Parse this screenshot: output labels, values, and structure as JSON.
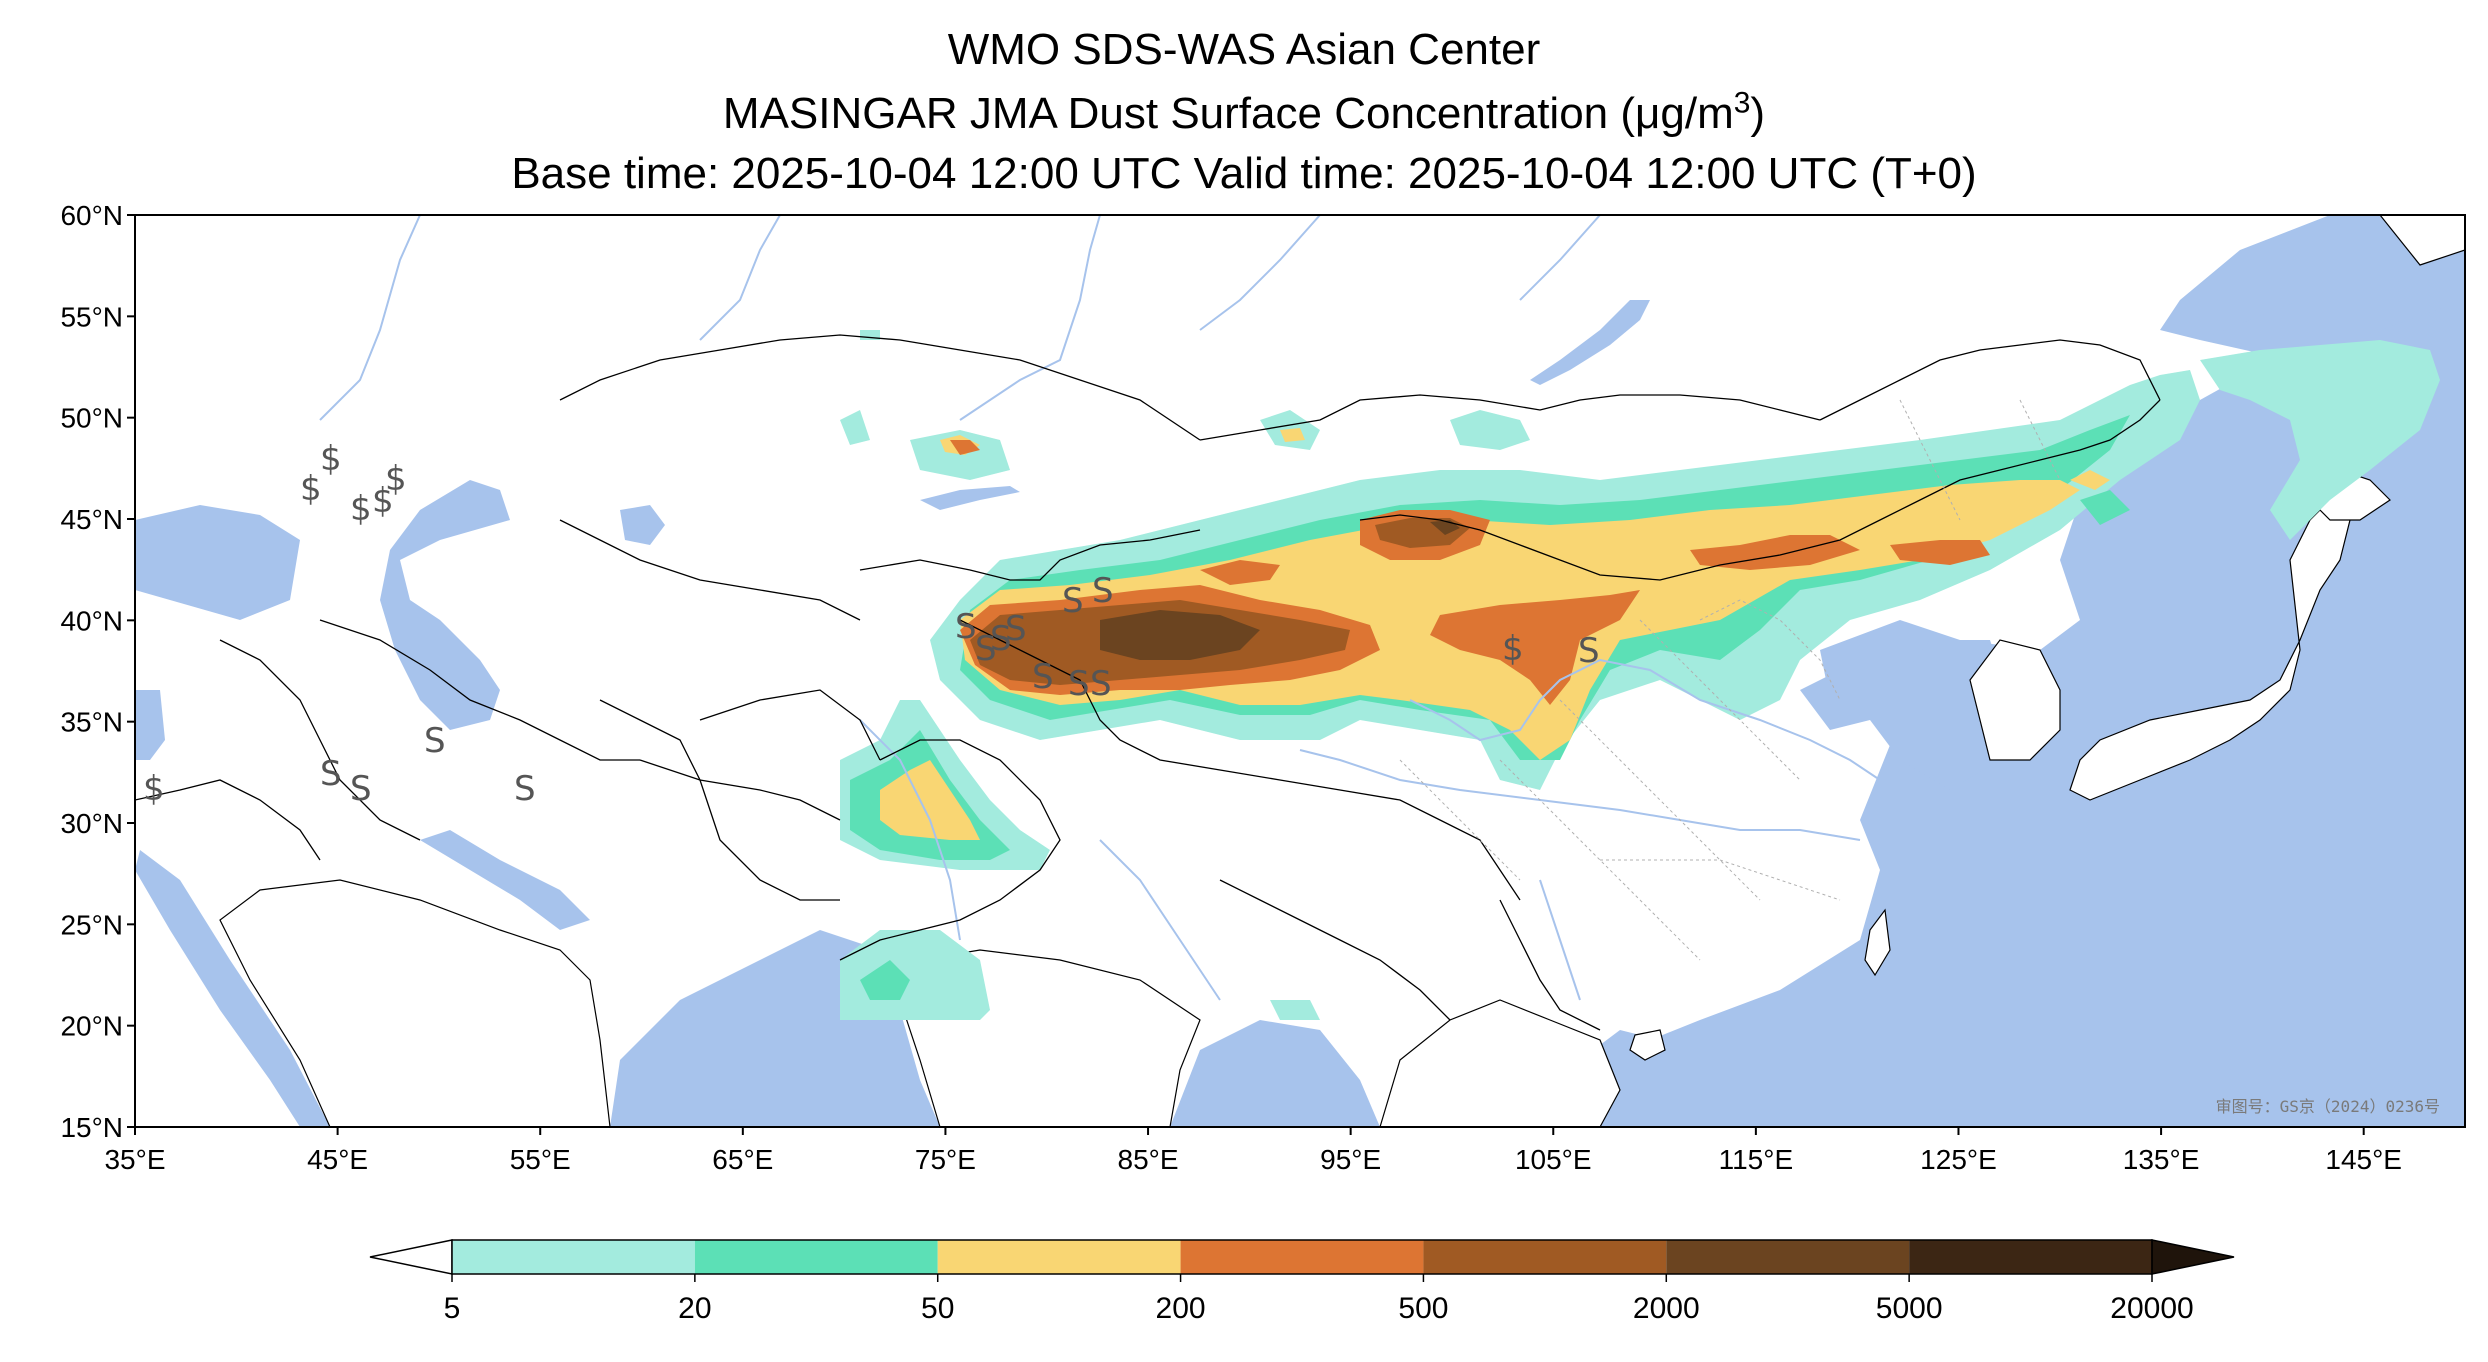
{
  "title": {
    "line1": "WMO SDS-WAS Asian Center",
    "line2_prefix": "MASINGAR JMA Dust Surface Concentration (",
    "line2_unit": "μg/m",
    "line2_sup": "3",
    "line2_suffix": ")",
    "line3": "Base time: 2025-10-04 12:00 UTC Valid time: 2025-10-04 12:00 UTC (T+0)"
  },
  "map": {
    "lat_labels": [
      "60°N",
      "55°N",
      "50°N",
      "45°N",
      "40°N",
      "35°N",
      "30°N",
      "25°N",
      "20°N",
      "15°N"
    ],
    "lon_labels": [
      "35°E",
      "45°E",
      "55°E",
      "65°E",
      "75°E",
      "85°E",
      "95°E",
      "105°E",
      "115°E",
      "125°E",
      "135°E",
      "145°E"
    ],
    "lat_range": [
      15,
      60
    ],
    "lon_range": [
      35,
      150
    ],
    "watermark": "审图号：GS京（2024）0236号",
    "colors": {
      "sea": "#a7c3ec",
      "land": "#ffffff",
      "river": "#a7c3ec",
      "border": "#000000",
      "province": "#b0b0b0"
    }
  },
  "colorbar": {
    "levels": [
      "5",
      "20",
      "50",
      "200",
      "500",
      "2000",
      "5000",
      "20000"
    ],
    "colors": [
      "#a3ebde",
      "#5ce0b6",
      "#f9d673",
      "#dd7533",
      "#a05a23",
      "#6b4420",
      "#3c2614"
    ],
    "under_color": "#ffffff",
    "over_color": "#1f140b"
  }
}
